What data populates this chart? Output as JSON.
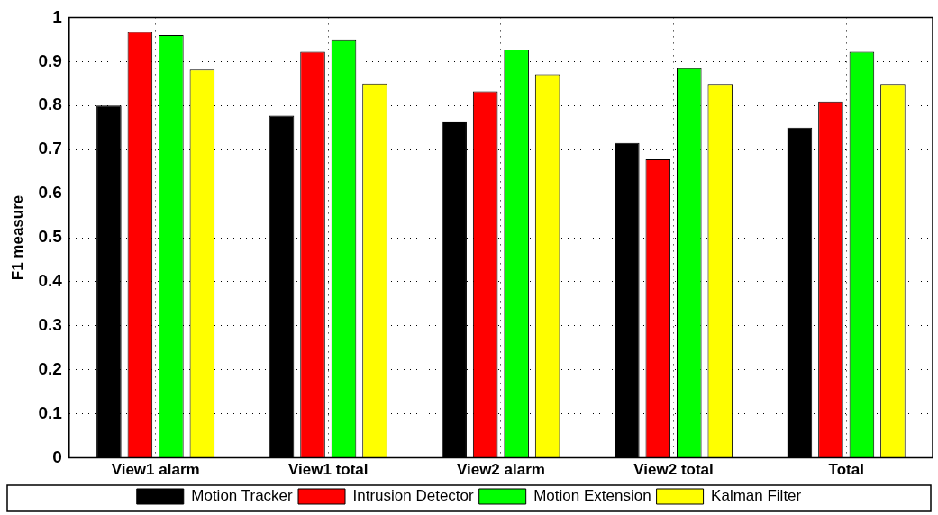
{
  "chart_data": {
    "type": "bar",
    "ylabel": "F1 measure",
    "categories": [
      "View1 alarm",
      "View1 total",
      "View2 alarm",
      "View2 total",
      "Total"
    ],
    "series": [
      {
        "name": "Motion Tracker",
        "color": "#000000",
        "values": [
          0.8,
          0.777,
          0.764,
          0.715,
          0.75
        ]
      },
      {
        "name": "Intrusion Detector",
        "color": "#ff0000",
        "values": [
          0.967,
          0.922,
          0.832,
          0.678,
          0.809
        ]
      },
      {
        "name": "Motion Extension",
        "color": "#00ff00",
        "values": [
          0.96,
          0.95,
          0.927,
          0.885,
          0.922
        ]
      },
      {
        "name": "Kalman Filter",
        "color": "#ffff00",
        "values": [
          0.882,
          0.85,
          0.871,
          0.849,
          0.849
        ]
      }
    ],
    "ylim": [
      0,
      1
    ],
    "yticks": [
      0,
      0.1,
      0.2,
      0.3,
      0.4,
      0.5,
      0.6,
      0.7,
      0.8,
      0.9,
      1
    ],
    "grid": true,
    "legend": "bottom"
  }
}
